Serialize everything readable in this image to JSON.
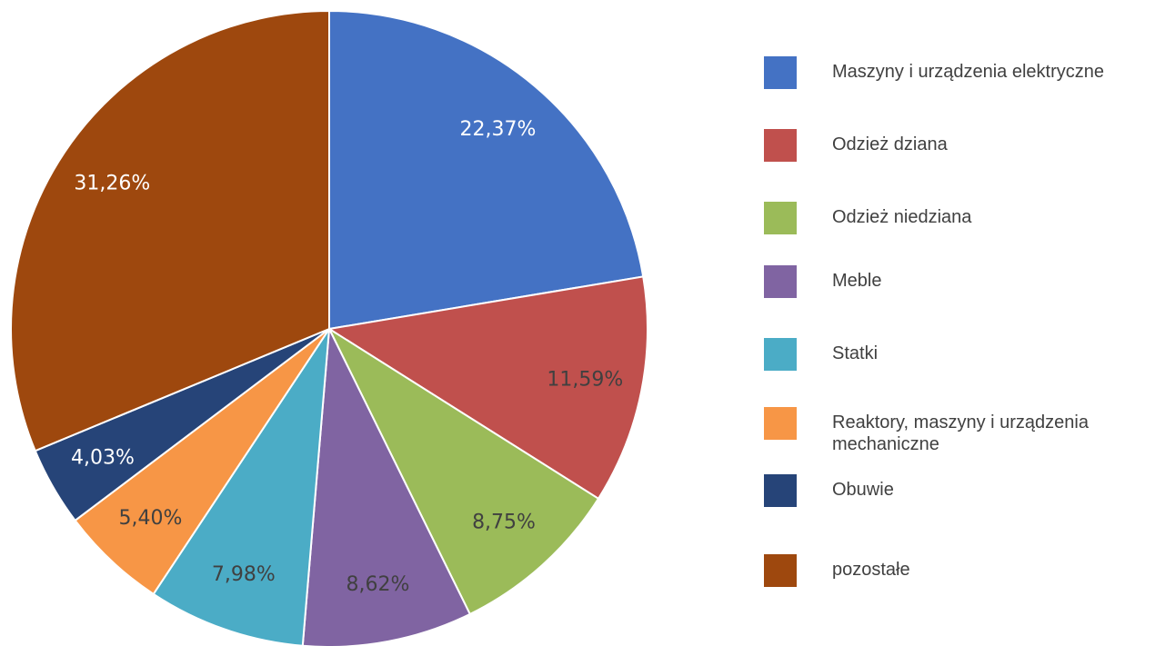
{
  "chart_data": {
    "type": "pie",
    "categories": [
      "Maszyny i urządzenia elektryczne",
      "Odzież dziana",
      "Odzież niedziana",
      "Meble",
      "Statki",
      "Reaktory, maszyny i urządzenia mechaniczne",
      "Obuwie",
      "pozostałe"
    ],
    "values": [
      22.37,
      11.59,
      8.75,
      8.62,
      7.98,
      5.4,
      4.03,
      31.26
    ],
    "value_labels": [
      "22,37%",
      "11,59%",
      "8,75%",
      "8,62%",
      "7,98%",
      "5,40%",
      "4,03%",
      "31,26%"
    ],
    "colors": [
      "#4472c4",
      "#c0504d",
      "#9bbb59",
      "#8064a2",
      "#4bacc6",
      "#f79646",
      "#264478",
      "#9e480e"
    ],
    "label_colors": [
      "#ffffff",
      "#404040",
      "#404040",
      "#404040",
      "#404040",
      "#404040",
      "#ffffff",
      "#ffffff"
    ],
    "legend": "right"
  }
}
